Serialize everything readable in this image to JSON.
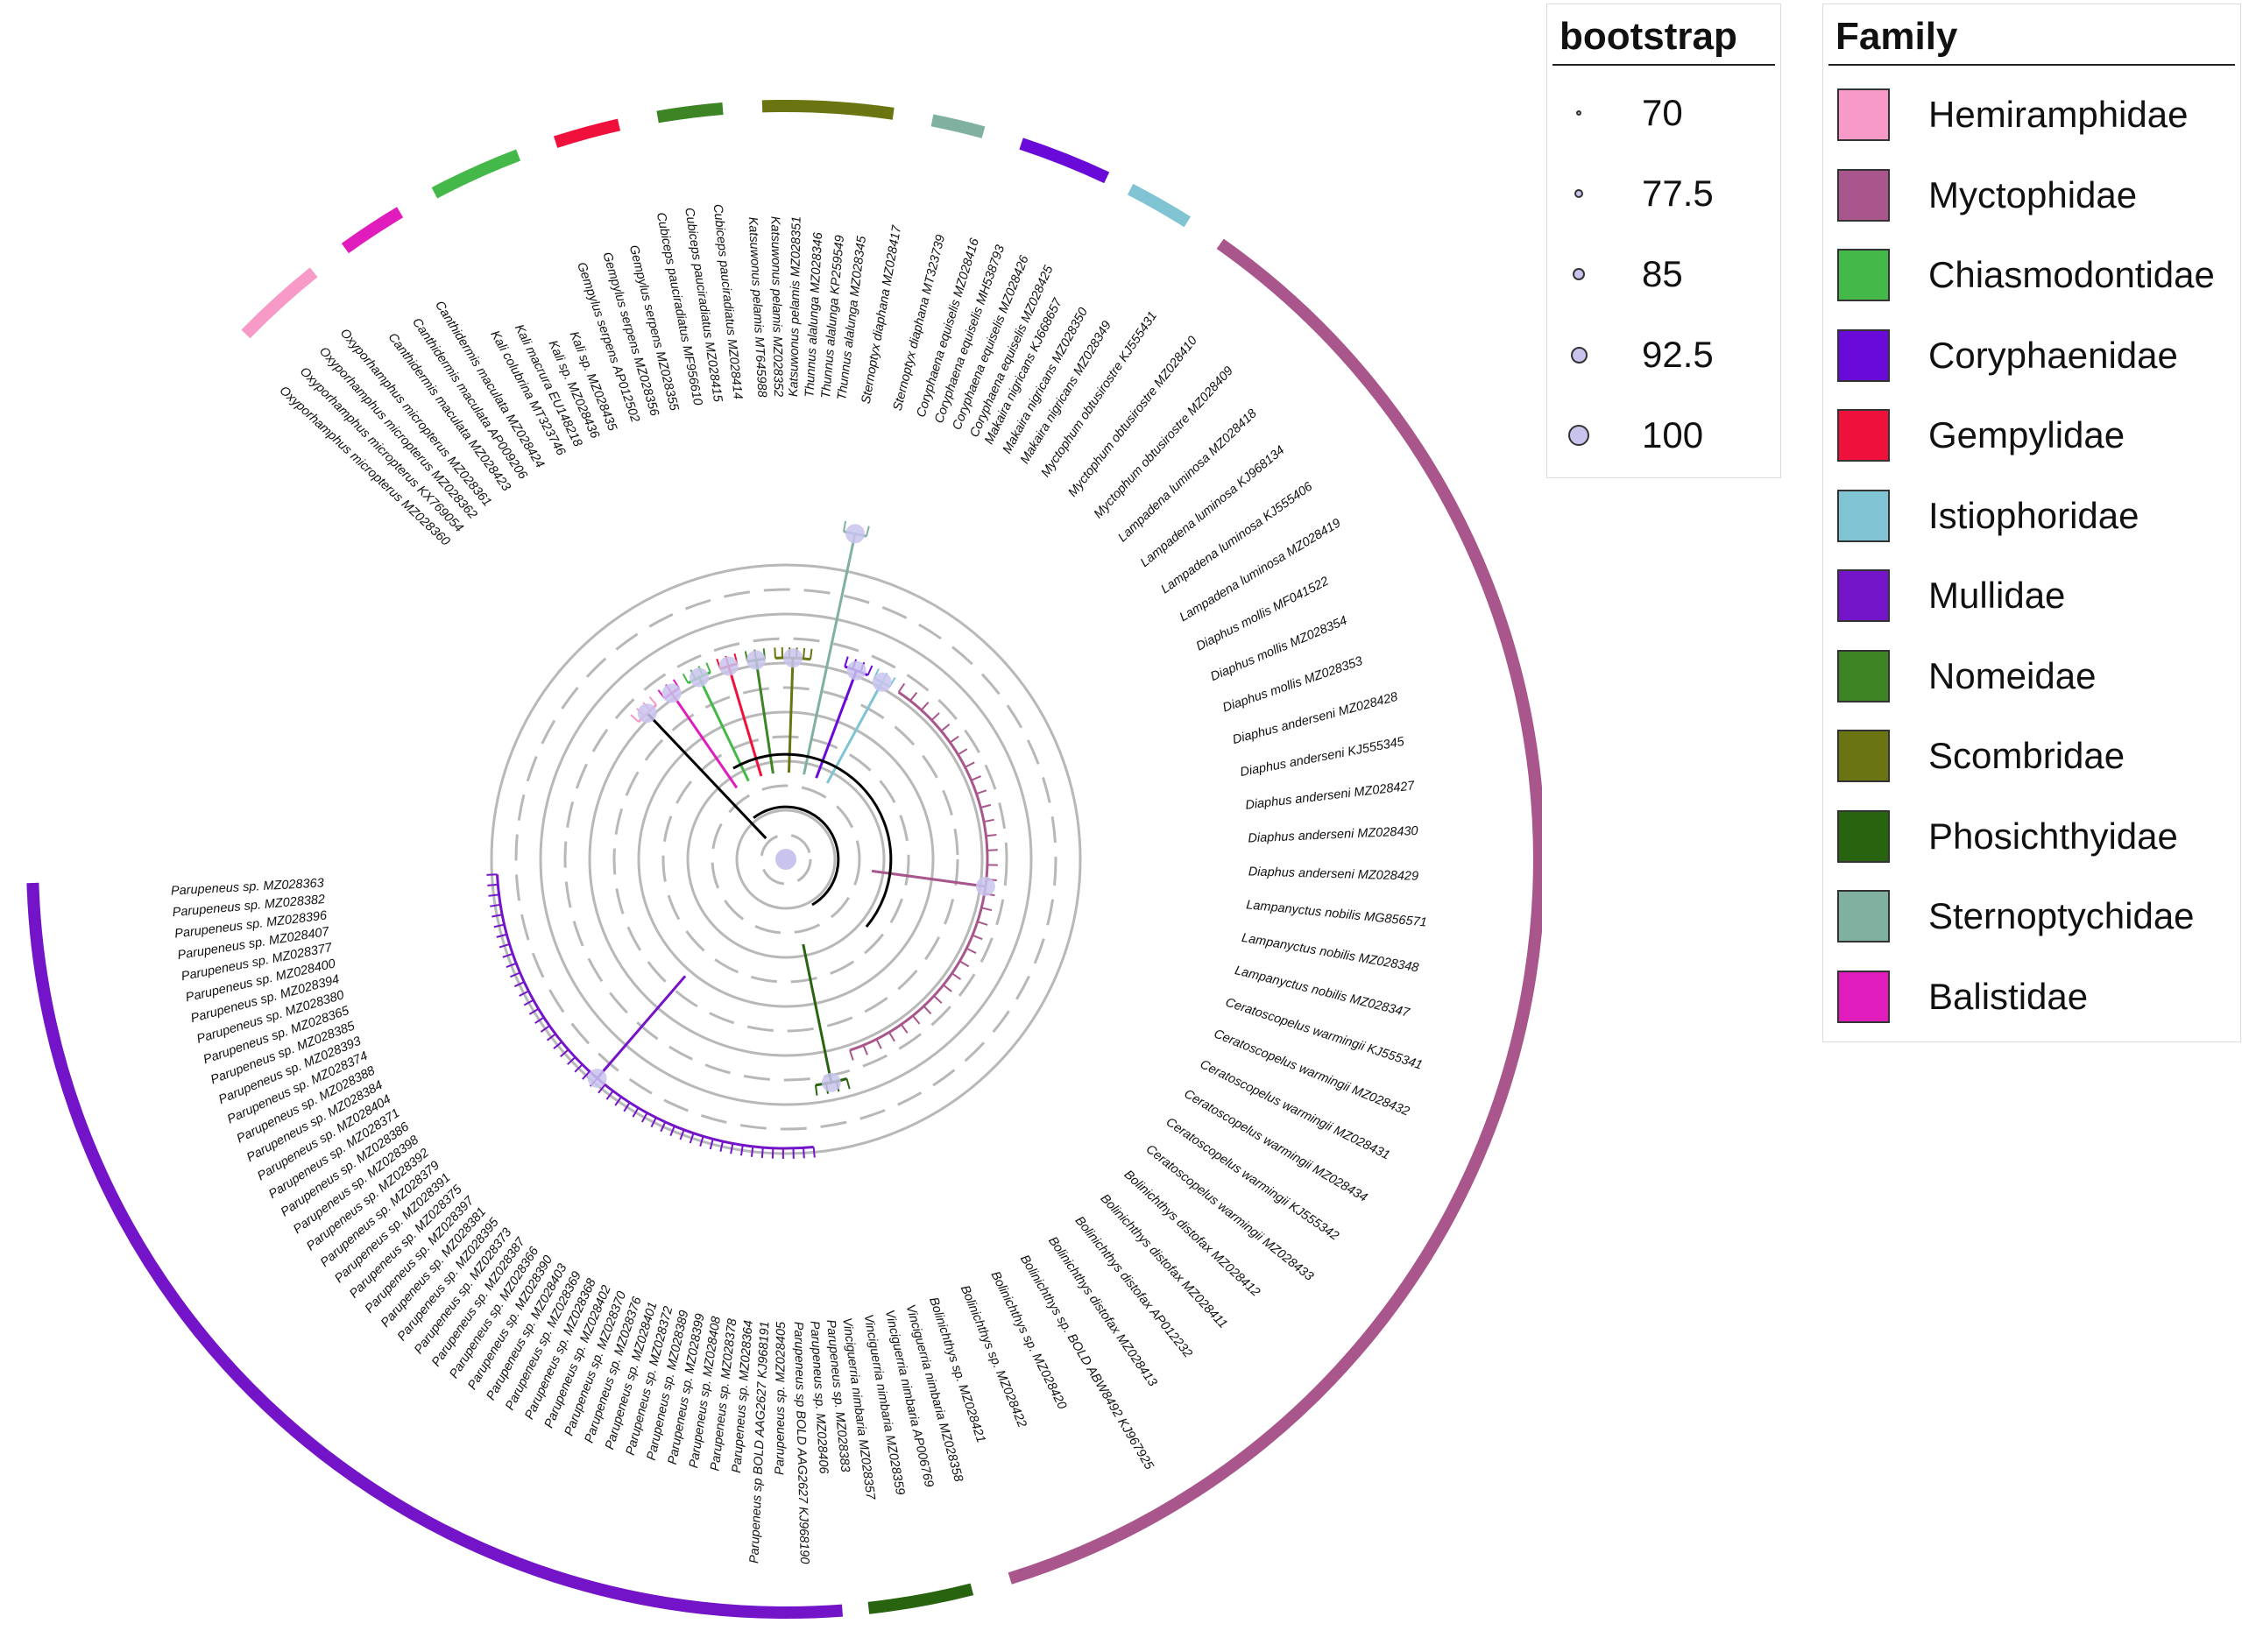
{
  "legends": {
    "bootstrap": {
      "title": "bootstrap",
      "entries": [
        {
          "label": "70",
          "value": 70
        },
        {
          "label": "77.5",
          "value": 77.5
        },
        {
          "label": "85",
          "value": 85
        },
        {
          "label": "92.5",
          "value": 92.5
        },
        {
          "label": "100",
          "value": 100
        }
      ]
    },
    "family": {
      "title": "Family",
      "entries": [
        {
          "label": "Hemiramphidae",
          "color": "#f79ac8"
        },
        {
          "label": "Myctophidae",
          "color": "#a8568b"
        },
        {
          "label": "Chiasmodontidae",
          "color": "#44b848"
        },
        {
          "label": "Coryphaenidae",
          "color": "#6a0ad8"
        },
        {
          "label": "Gempylidae",
          "color": "#f0103c"
        },
        {
          "label": "Istiophoridae",
          "color": "#80c4d4"
        },
        {
          "label": "Mullidae",
          "color": "#7414c8"
        },
        {
          "label": "Nomeidae",
          "color": "#3c8424"
        },
        {
          "label": "Scombridae",
          "color": "#6a7410"
        },
        {
          "label": "Phosichthyidae",
          "color": "#286410"
        },
        {
          "label": "Sternoptychidae",
          "color": "#80b0a0"
        },
        {
          "label": "Balistidae",
          "color": "#e01cbc"
        }
      ]
    }
  },
  "tips": {
    "mullidae": [
      "Parupeneus sp. MZ028363",
      "Parupeneus sp. MZ028382",
      "Parupeneus sp. MZ028396",
      "Parupeneus sp. MZ028407",
      "Parupeneus sp. MZ028377",
      "Parupeneus sp. MZ028400",
      "Parupeneus sp. MZ028394",
      "Parupeneus sp. MZ028380",
      "Parupeneus sp. MZ028365",
      "Parupeneus sp. MZ028385",
      "Parupeneus sp. MZ028393",
      "Parupeneus sp. MZ028374",
      "Parupeneus sp. MZ028388",
      "Parupeneus sp. MZ028384",
      "Parupeneus sp. MZ028404",
      "Parupeneus sp. MZ028371",
      "Parupeneus sp. MZ028386",
      "Parupeneus sp. MZ028398",
      "Parupeneus sp. MZ028392",
      "Parupeneus sp. MZ028379",
      "Parupeneus sp. MZ028391",
      "Parupeneus sp. MZ028375",
      "Parupeneus sp. MZ028397",
      "Parupeneus sp. MZ028381",
      "Parupeneus sp. MZ028395",
      "Parupeneus sp. MZ028373",
      "Parupeneus sp. MZ028387",
      "Parupeneus sp. MZ028366",
      "Parupeneus sp. MZ028390",
      "Parupeneus sp. MZ028403",
      "Parupeneus sp. MZ028369",
      "Parupeneus sp. MZ028368",
      "Parupeneus sp. MZ028402",
      "Parupeneus sp. MZ028370",
      "Parupeneus sp. MZ028376",
      "Parupeneus sp. MZ028401",
      "Parupeneus sp. MZ028372",
      "Parupeneus sp. MZ028389",
      "Parupeneus sp. MZ028399",
      "Parupeneus sp. MZ028408",
      "Parupeneus sp. MZ028378",
      "Parupeneus sp. MZ028364",
      "Parupeneus sp BOLD AAG2627 KJ968191",
      "Parupeneus sp. MZ028405",
      "Parupeneus sp BOLD AAG2627 KJ968190",
      "Parupeneus sp. MZ028406",
      "Parupeneus sp. MZ028383"
    ],
    "phosichthyidae": [
      "Vinciguerria nimbaria MZ028357",
      "Vinciguerria nimbaria MZ028359",
      "Vinciguerria nimbaria AP006769",
      "Vinciguerria nimbaria MZ028358"
    ],
    "myctophidae": [
      "Bolinichthys sp. MZ028421",
      "Bolinichthys sp. MZ028422",
      "Bolinichthys sp. MZ028420",
      "Bolinichthys sp. BOLD ABW8492 KJ967925",
      "Bolinichthys distofax MZ028413",
      "Bolinichthys distofax AP012232",
      "Bolinichthys distofax MZ028411",
      "Bolinichthys distofax MZ028412",
      "Ceratoscopelus warmingii MZ028433",
      "Ceratoscopelus warmingii KJ555342",
      "Ceratoscopelus warmingii MZ028434",
      "Ceratoscopelus warmingii MZ028431",
      "Ceratoscopelus warmingii MZ028432",
      "Ceratoscopelus warmingii KJ555341",
      "Lampanyctus nobilis MZ028347",
      "Lampanyctus nobilis MZ028348",
      "Lampanyctus nobilis MG856571",
      "Diaphus anderseni MZ028429",
      "Diaphus anderseni MZ028430",
      "Diaphus anderseni MZ028427",
      "Diaphus anderseni KJ555345",
      "Diaphus anderseni MZ028428",
      "Diaphus mollis MZ028353",
      "Diaphus mollis MZ028354",
      "Diaphus mollis MF041522",
      "Lampadena luminosa MZ028419",
      "Lampadena luminosa KJ555406",
      "Lampadena luminosa KJ968134",
      "Lampadena luminosa MZ028418",
      "Myctophum obtusirostre MZ028409",
      "Myctophum obtusirostre MZ028410",
      "Myctophum obtusirostre KJ555431"
    ],
    "istiophoridae": [
      "Makaira nigricans MZ028349",
      "Makaira nigricans MZ028350",
      "Makaira nigricans KJ668657"
    ],
    "coryphaenidae": [
      "Coryphaena equiselis MZ028425",
      "Coryphaena equiselis MZ028426",
      "Coryphaena equiselis MH538793",
      "Coryphaena equiselis MZ028416"
    ],
    "sternoptychidae": [
      "Sternoptyx diaphana MT323739",
      "Sternoptyx diaphana MZ028417"
    ],
    "scombridae": [
      "Thunnus alalunga MZ028345",
      "Thunnus alalunga KP259549",
      "Thunnus alalunga MZ028346",
      "Katsuwonus pelamis MZ028351",
      "Katsuwonus pelamis MZ028352",
      "Katsuwonus pelamis MT645988"
    ],
    "nomeidae": [
      "Cubiceps pauciradiatus MZ028414",
      "Cubiceps pauciradiatus MZ028415",
      "Cubiceps pauciradiatus MF956610"
    ],
    "gempylidae": [
      "Gempylus serpens MZ028355",
      "Gempylus serpens MZ028356",
      "Gempylus serpens AP012502"
    ],
    "chiasmodontidae": [
      "Kali sp. MZ028435",
      "Kali sp. MZ028436",
      "Kali macrura EU148218",
      "Kali colubrina MT323746"
    ],
    "balistidae": [
      "Canthidermis maculata MZ028424",
      "Canthidermis maculata AP009206",
      "Canthidermis maculata MZ028423"
    ],
    "hemiramphidae": [
      "Oxyporhamphus micropterus MZ028361",
      "Oxyporhamphus micropterus MZ028362",
      "Oxyporhamphus micropterus KX769054",
      "Oxyporhamphus micropterus MZ028360"
    ]
  }
}
